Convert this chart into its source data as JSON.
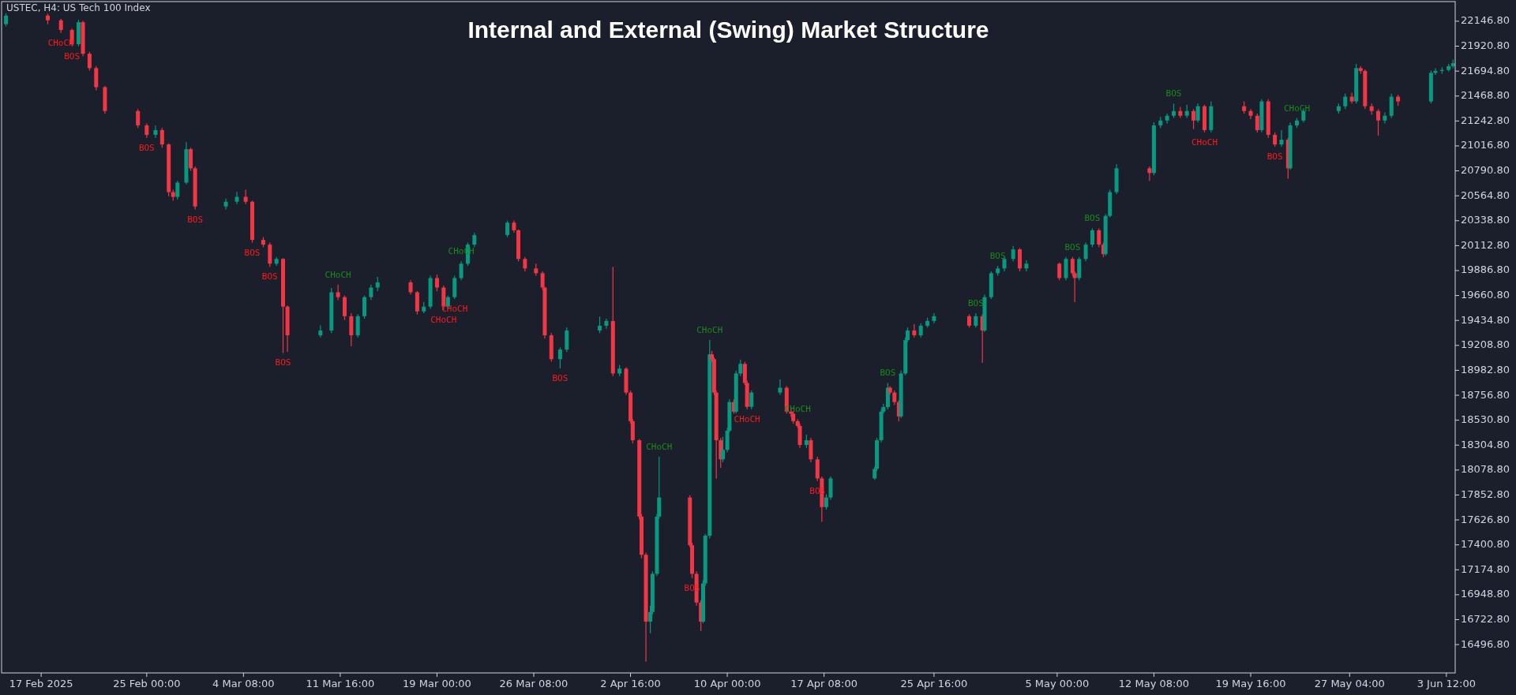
{
  "chart_data": {
    "type": "candlestick",
    "title": "Internal and External (Swing) Market Structure",
    "xlim": [
      "2025-02-14T00:00",
      "2025-06-04T04:00"
    ],
    "xticks": [
      {
        "value": "2025-02-17T00:00",
        "label": "17 Feb 2025"
      },
      {
        "value": "2025-02-25T00:00",
        "label": "25 Feb 00:00"
      },
      {
        "value": "2025-03-04T08:00",
        "label": "4 Mar 08:00"
      },
      {
        "value": "2025-03-11T16:00",
        "label": "11 Mar 16:00"
      },
      {
        "value": "2025-03-19T00:00",
        "label": "19 Mar 00:00"
      },
      {
        "value": "2025-03-26T08:00",
        "label": "26 Mar 08:00"
      },
      {
        "value": "2025-04-02T16:00",
        "label": "2 Apr 16:00"
      },
      {
        "value": "2025-04-10T00:00",
        "label": "10 Apr 00:00"
      },
      {
        "value": "2025-04-17T08:00",
        "label": "17 Apr 08:00"
      },
      {
        "value": "2025-04-25T16:00",
        "label": "25 Apr 16:00"
      },
      {
        "value": "2025-05-05T00:00",
        "label": "5 May 00:00"
      },
      {
        "value": "2025-05-12T08:00",
        "label": "12 May 08:00"
      },
      {
        "value": "2025-05-19T16:00",
        "label": "19 May 16:00"
      },
      {
        "value": "2025-05-27T04:00",
        "label": "27 May 04:00"
      },
      {
        "value": "2025-06-03T12:00",
        "label": "3 Jun 12:00"
      }
    ],
    "ylim": [
      16240,
      22325
    ],
    "yticks": [
      {
        "value": 16496.8,
        "label": "16496.80"
      },
      {
        "value": 16722.8,
        "label": "16722.80"
      },
      {
        "value": 16948.8,
        "label": "16948.80"
      },
      {
        "value": 17174.8,
        "label": "17174.80"
      },
      {
        "value": 17400.8,
        "label": "17400.80"
      },
      {
        "value": 17626.8,
        "label": "17626.80"
      },
      {
        "value": 17852.8,
        "label": "17852.80"
      },
      {
        "value": 18078.8,
        "label": "18078.80"
      },
      {
        "value": 18304.8,
        "label": "18304.80"
      },
      {
        "value": 18530.8,
        "label": "18530.80"
      },
      {
        "value": 18756.8,
        "label": "18756.80"
      },
      {
        "value": 18982.8,
        "label": "18982.80"
      },
      {
        "value": 19208.8,
        "label": "19208.80"
      },
      {
        "value": 19434.8,
        "label": "19434.80"
      },
      {
        "value": 19660.8,
        "label": "19660.80"
      },
      {
        "value": 19886.8,
        "label": "19886.80"
      },
      {
        "value": 20112.8,
        "label": "20112.80"
      },
      {
        "value": 20338.8,
        "label": "20338.80"
      },
      {
        "value": 20564.8,
        "label": "20564.80"
      },
      {
        "value": 20790.8,
        "label": "20790.80"
      },
      {
        "value": 21016.8,
        "label": "21016.80"
      },
      {
        "value": 21242.8,
        "label": "21242.80"
      },
      {
        "value": 21468.8,
        "label": "21468.80"
      },
      {
        "value": 21694.8,
        "label": "21694.80"
      },
      {
        "value": 21920.8,
        "label": "21920.80"
      },
      {
        "value": 22146.8,
        "label": "22146.80"
      }
    ],
    "grid": false,
    "x": [
      "2025-02-14T08:00",
      "2025-02-17T12:00",
      "2025-02-18T12:00",
      "2025-02-19T08:00",
      "2025-02-19T20:00",
      "2025-02-20T04:00",
      "2025-02-20T16:00",
      "2025-02-21T04:00",
      "2025-02-21T20:00",
      "2025-02-24T08:00",
      "2025-02-25T00:00",
      "2025-02-25T16:00",
      "2025-02-26T04:00",
      "2025-02-26T16:00",
      "2025-02-27T00:00",
      "2025-02-27T08:00",
      "2025-02-28T00:00",
      "2025-02-28T08:00",
      "2025-02-28T16:00",
      "2025-03-03T00:00",
      "2025-03-03T20:00",
      "2025-03-04T12:00",
      "2025-03-05T00:00",
      "2025-03-05T20:00",
      "2025-03-06T08:00",
      "2025-03-06T20:00",
      "2025-03-07T08:00",
      "2025-03-07T16:00",
      "2025-03-10T04:00",
      "2025-03-11T00:00",
      "2025-03-11T12:00",
      "2025-03-12T00:00",
      "2025-03-12T12:00",
      "2025-03-13T00:00",
      "2025-03-13T12:00",
      "2025-03-14T00:00",
      "2025-03-14T12:00",
      "2025-03-17T00:00",
      "2025-03-17T12:00",
      "2025-03-18T00:00",
      "2025-03-18T12:00",
      "2025-03-19T00:00",
      "2025-03-19T12:00",
      "2025-03-19T20:00",
      "2025-03-20T08:00",
      "2025-03-20T20:00",
      "2025-03-21T08:00",
      "2025-03-21T20:00",
      "2025-03-24T08:00",
      "2025-03-24T20:00",
      "2025-03-25T04:00",
      "2025-03-25T16:00",
      "2025-03-26T12:00",
      "2025-03-27T00:00",
      "2025-03-27T04:00",
      "2025-03-27T16:00",
      "2025-03-28T08:00",
      "2025-03-28T20:00",
      "2025-03-31T08:00",
      "2025-03-31T20:00",
      "2025-04-01T08:00",
      "2025-04-01T20:00",
      "2025-04-02T08:00",
      "2025-04-02T16:00",
      "2025-04-02T20:00",
      "2025-04-03T08:00",
      "2025-04-03T12:00",
      "2025-04-03T20:00",
      "2025-04-04T04:00",
      "2025-04-04T08:00",
      "2025-04-04T16:00",
      "2025-04-04T20:00",
      "2025-04-07T04:00",
      "2025-04-07T08:00",
      "2025-04-07T16:00",
      "2025-04-08T00:00",
      "2025-04-08T04:00",
      "2025-04-08T08:00",
      "2025-04-08T16:00",
      "2025-04-08T20:00",
      "2025-04-09T00:00",
      "2025-04-09T04:00",
      "2025-04-09T12:00",
      "2025-04-09T16:00",
      "2025-04-10T00:00",
      "2025-04-10T04:00",
      "2025-04-10T12:00",
      "2025-04-10T16:00",
      "2025-04-11T00:00",
      "2025-04-11T08:00",
      "2025-04-11T12:00",
      "2025-04-11T20:00",
      "2025-04-14T00:00",
      "2025-04-14T12:00",
      "2025-04-14T20:00",
      "2025-04-15T00:00",
      "2025-04-15T08:00",
      "2025-04-15T12:00",
      "2025-04-16T00:00",
      "2025-04-16T08:00",
      "2025-04-16T20:00",
      "2025-04-17T04:00",
      "2025-04-17T12:00",
      "2025-04-17T20:00",
      "2025-04-21T04:00",
      "2025-04-21T08:00",
      "2025-04-21T16:00",
      "2025-04-21T20:00",
      "2025-04-22T04:00",
      "2025-04-22T08:00",
      "2025-04-22T16:00",
      "2025-04-23T00:00",
      "2025-04-23T04:00",
      "2025-04-23T12:00",
      "2025-04-23T16:00",
      "2025-04-24T04:00",
      "2025-04-24T16:00",
      "2025-04-25T04:00",
      "2025-04-25T16:00",
      "2025-04-28T08:00",
      "2025-04-28T20:00",
      "2025-04-29T08:00",
      "2025-04-29T12:00",
      "2025-04-30T00:00",
      "2025-04-30T12:00",
      "2025-05-01T00:00",
      "2025-05-01T16:00",
      "2025-05-02T04:00",
      "2025-05-02T16:00",
      "2025-05-05T04:00",
      "2025-05-05T16:00",
      "2025-05-06T04:00",
      "2025-05-06T08:00",
      "2025-05-06T16:00",
      "2025-05-07T04:00",
      "2025-05-07T16:00",
      "2025-05-08T04:00",
      "2025-05-08T12:00",
      "2025-05-08T16:00",
      "2025-05-09T00:00",
      "2025-05-09T12:00",
      "2025-05-12T00:00",
      "2025-05-12T08:00",
      "2025-05-12T20:00",
      "2025-05-13T08:00",
      "2025-05-13T20:00",
      "2025-05-14T08:00",
      "2025-05-14T20:00",
      "2025-05-15T08:00",
      "2025-05-15T16:00",
      "2025-05-16T04:00",
      "2025-05-16T16:00",
      "2025-05-19T04:00",
      "2025-05-19T16:00",
      "2025-05-20T04:00",
      "2025-05-20T12:00",
      "2025-05-21T00:00",
      "2025-05-21T12:00",
      "2025-05-22T00:00",
      "2025-05-22T12:00",
      "2025-05-22T16:00",
      "2025-05-23T04:00",
      "2025-05-23T16:00",
      "2025-05-26T08:00",
      "2025-05-26T20:00",
      "2025-05-27T08:00",
      "2025-05-27T16:00",
      "2025-05-28T00:00",
      "2025-05-28T08:00",
      "2025-05-28T20:00",
      "2025-05-29T08:00",
      "2025-05-29T20:00",
      "2025-05-30T08:00",
      "2025-05-30T20:00",
      "2025-06-02T08:00",
      "2025-06-02T16:00",
      "2025-06-03T04:00",
      "2025-06-03T16:00",
      "2025-06-04T00:00"
    ],
    "ohlc": [
      [
        22120,
        22220,
        22100,
        22198
      ],
      [
        22198,
        22215,
        22120,
        22155
      ],
      [
        22155,
        22170,
        22040,
        22068
      ],
      [
        22068,
        22080,
        21920,
        21939
      ],
      [
        21939,
        22160,
        21920,
        22138
      ],
      [
        22138,
        22150,
        21830,
        21852
      ],
      [
        21852,
        21870,
        21700,
        21722
      ],
      [
        21722,
        21740,
        21520,
        21549
      ],
      [
        21549,
        21560,
        21310,
        21333
      ],
      [
        21333,
        21350,
        21180,
        21203
      ],
      [
        21203,
        21220,
        21090,
        21117
      ],
      [
        21117,
        21200,
        21090,
        21160
      ],
      [
        21160,
        21180,
        21000,
        21030
      ],
      [
        21030,
        21040,
        20560,
        20598
      ],
      [
        20598,
        20620,
        20520,
        20555
      ],
      [
        20555,
        20700,
        20530,
        20684
      ],
      [
        20684,
        21050,
        20670,
        20987
      ],
      [
        20987,
        21000,
        20790,
        20814
      ],
      [
        20814,
        20830,
        20440,
        20468
      ],
      [
        20468,
        20540,
        20440,
        20511
      ],
      [
        20511,
        20600,
        20490,
        20555
      ],
      [
        20555,
        20620,
        20490,
        20511
      ],
      [
        20511,
        20520,
        20140,
        20165
      ],
      [
        20165,
        20190,
        20100,
        20122
      ],
      [
        20122,
        20140,
        19920,
        19949
      ],
      [
        19949,
        20010,
        19930,
        19992
      ],
      [
        19992,
        20000,
        19140,
        19560
      ],
      [
        19560,
        19570,
        19150,
        19300
      ],
      [
        19300,
        19390,
        19280,
        19344
      ],
      [
        19344,
        19730,
        19320,
        19690
      ],
      [
        19690,
        19760,
        19620,
        19646
      ],
      [
        19646,
        19660,
        19440,
        19473
      ],
      [
        19473,
        19500,
        19200,
        19300
      ],
      [
        19300,
        19490,
        19280,
        19473
      ],
      [
        19473,
        19660,
        19450,
        19646
      ],
      [
        19646,
        19760,
        19620,
        19733
      ],
      [
        19733,
        19830,
        19700,
        19780
      ],
      [
        19780,
        19800,
        19670,
        19690
      ],
      [
        19690,
        19700,
        19490,
        19517
      ],
      [
        19517,
        19600,
        19500,
        19560
      ],
      [
        19560,
        19840,
        19540,
        19819
      ],
      [
        19819,
        19850,
        19700,
        19733
      ],
      [
        19733,
        19750,
        19530,
        19560
      ],
      [
        19560,
        19660,
        19540,
        19646
      ],
      [
        19646,
        19840,
        19630,
        19819
      ],
      [
        19819,
        19970,
        19800,
        19949
      ],
      [
        19949,
        20140,
        19930,
        20122
      ],
      [
        20122,
        20230,
        20100,
        20209
      ],
      [
        20209,
        20340,
        20190,
        20321
      ],
      [
        20321,
        20340,
        20230,
        20252
      ],
      [
        20252,
        20260,
        19970,
        19992
      ],
      [
        19992,
        20010,
        19880,
        19906
      ],
      [
        19906,
        19950,
        19840,
        19863
      ],
      [
        19863,
        19880,
        19710,
        19733
      ],
      [
        19733,
        19740,
        19270,
        19300
      ],
      [
        19300,
        19320,
        19060,
        19084
      ],
      [
        19084,
        19190,
        19000,
        19171
      ],
      [
        19171,
        19370,
        19150,
        19344
      ],
      [
        19344,
        19470,
        19320,
        19387
      ],
      [
        19387,
        19450,
        19360,
        19430
      ],
      [
        19430,
        19920,
        18930,
        18954
      ],
      [
        18954,
        19030,
        18930,
        18998
      ],
      [
        18998,
        19010,
        18760,
        18781
      ],
      [
        18781,
        18800,
        18500,
        18522
      ],
      [
        18522,
        18540,
        18320,
        18349
      ],
      [
        18349,
        18360,
        17630,
        17657
      ],
      [
        17657,
        17680,
        17280,
        17311
      ],
      [
        17311,
        17330,
        16342,
        16705
      ],
      [
        16705,
        16850,
        16600,
        16792
      ],
      [
        16792,
        17160,
        16770,
        17138
      ],
      [
        17138,
        17680,
        17120,
        17657
      ],
      [
        17657,
        18200,
        17640,
        17830
      ],
      [
        17830,
        17850,
        17380,
        17397
      ],
      [
        17397,
        17420,
        17100,
        17138
      ],
      [
        17138,
        17160,
        16850,
        16878
      ],
      [
        16878,
        16900,
        16620,
        16705
      ],
      [
        16705,
        17080,
        16690,
        17051
      ],
      [
        17051,
        17500,
        17030,
        17484
      ],
      [
        17484,
        19257,
        17460,
        19127
      ],
      [
        19127,
        19160,
        19060,
        19084
      ],
      [
        19084,
        19100,
        18760,
        18781
      ],
      [
        18781,
        18800,
        18000,
        18349
      ],
      [
        18349,
        18370,
        18100,
        18176
      ],
      [
        18176,
        18380,
        18150,
        18262
      ],
      [
        18262,
        18460,
        18240,
        18435
      ],
      [
        18435,
        18720,
        18420,
        18695
      ],
      [
        18695,
        18720,
        18590,
        18608
      ],
      [
        18608,
        18980,
        18590,
        18954
      ],
      [
        18954,
        19080,
        18930,
        19041
      ],
      [
        19041,
        19060,
        18850,
        18868
      ],
      [
        18868,
        18890,
        18630,
        18652
      ],
      [
        18652,
        18800,
        18630,
        18781
      ],
      [
        18781,
        18900,
        18760,
        18825
      ],
      [
        18825,
        18840,
        18590,
        18608
      ],
      [
        18608,
        18640,
        18560,
        18590
      ],
      [
        18590,
        18610,
        18500,
        18522
      ],
      [
        18522,
        18540,
        18460,
        18479
      ],
      [
        18479,
        18500,
        18280,
        18306
      ],
      [
        18306,
        18400,
        18280,
        18349
      ],
      [
        18349,
        18370,
        18150,
        18176
      ],
      [
        18176,
        18200,
        17980,
        18003
      ],
      [
        18003,
        18020,
        17610,
        17743
      ],
      [
        17743,
        17860,
        17720,
        17830
      ],
      [
        17830,
        18020,
        17810,
        18003
      ],
      [
        18003,
        18110,
        17990,
        18089
      ],
      [
        18089,
        18370,
        18070,
        18349
      ],
      [
        18349,
        18630,
        18330,
        18608
      ],
      [
        18608,
        18680,
        18590,
        18650
      ],
      [
        18650,
        18868,
        18630,
        18825
      ],
      [
        18825,
        18840,
        18760,
        18781
      ],
      [
        18781,
        18800,
        18670,
        18695
      ],
      [
        18695,
        18710,
        18520,
        18565
      ],
      [
        18565,
        18980,
        18550,
        18954
      ],
      [
        18954,
        19280,
        18940,
        19257
      ],
      [
        19257,
        19370,
        19240,
        19344
      ],
      [
        19344,
        19400,
        19280,
        19300
      ],
      [
        19300,
        19410,
        19280,
        19387
      ],
      [
        19387,
        19460,
        19370,
        19430
      ],
      [
        19430,
        19500,
        19410,
        19473
      ],
      [
        19473,
        19490,
        19370,
        19387
      ],
      [
        19387,
        19500,
        19370,
        19473
      ],
      [
        19473,
        19490,
        19050,
        19344
      ],
      [
        19344,
        19670,
        19330,
        19646
      ],
      [
        19646,
        19880,
        19630,
        19863
      ],
      [
        19863,
        19930,
        19840,
        19906
      ],
      [
        19906,
        20010,
        19880,
        19992
      ],
      [
        19992,
        20110,
        19970,
        20079
      ],
      [
        20079,
        20090,
        19880,
        19906
      ],
      [
        19906,
        19980,
        19880,
        19949
      ],
      [
        19949,
        19960,
        19800,
        19819
      ],
      [
        19819,
        20010,
        19800,
        19992
      ],
      [
        19992,
        20010,
        19840,
        19863
      ],
      [
        19863,
        19880,
        19600,
        19819
      ],
      [
        19819,
        20010,
        19800,
        19992
      ],
      [
        19992,
        20140,
        19970,
        20122
      ],
      [
        20122,
        20270,
        20100,
        20252
      ],
      [
        20252,
        20270,
        20100,
        20122
      ],
      [
        20122,
        20140,
        20010,
        20036
      ],
      [
        20036,
        20400,
        20020,
        20382
      ],
      [
        20382,
        20620,
        20370,
        20598
      ],
      [
        20598,
        20850,
        20580,
        20814
      ],
      [
        20814,
        20830,
        20700,
        20771
      ],
      [
        20771,
        21230,
        20750,
        21203
      ],
      [
        21203,
        21280,
        21180,
        21247
      ],
      [
        21247,
        21310,
        21220,
        21290
      ],
      [
        21290,
        21400,
        21270,
        21333
      ],
      [
        21333,
        21370,
        21270,
        21290
      ],
      [
        21290,
        21390,
        21270,
        21333
      ],
      [
        21333,
        21350,
        21170,
        21247
      ],
      [
        21247,
        21400,
        21230,
        21376
      ],
      [
        21376,
        21390,
        21140,
        21160
      ],
      [
        21160,
        21420,
        21140,
        21376
      ],
      [
        21376,
        21420,
        21310,
        21333
      ],
      [
        21333,
        21350,
        21260,
        21290
      ],
      [
        21290,
        21310,
        21140,
        21160
      ],
      [
        21160,
        21440,
        21140,
        21420
      ],
      [
        21420,
        21440,
        21090,
        21117
      ],
      [
        21117,
        21140,
        21010,
        21030
      ],
      [
        21030,
        21160,
        21010,
        21073
      ],
      [
        21073,
        21090,
        20720,
        20814
      ],
      [
        20814,
        21230,
        20800,
        21203
      ],
      [
        21203,
        21270,
        21180,
        21247
      ],
      [
        21247,
        21360,
        21230,
        21333
      ],
      [
        21333,
        21400,
        21310,
        21376
      ],
      [
        21376,
        21490,
        21350,
        21463
      ],
      [
        21463,
        21500,
        21400,
        21420
      ],
      [
        21420,
        21760,
        21400,
        21722
      ],
      [
        21722,
        21740,
        21670,
        21696
      ],
      [
        21696,
        21710,
        21350,
        21376
      ],
      [
        21376,
        21400,
        21300,
        21333
      ],
      [
        21333,
        21350,
        21110,
        21247
      ],
      [
        21247,
        21320,
        21220,
        21290
      ],
      [
        21290,
        21490,
        21270,
        21463
      ],
      [
        21463,
        21480,
        21380,
        21420
      ],
      [
        21420,
        21700,
        21400,
        21679
      ],
      [
        21679,
        21720,
        21660,
        21696
      ],
      [
        21696,
        21730,
        21670,
        21705
      ],
      [
        21705,
        21760,
        21690,
        21740
      ],
      [
        21740,
        21800,
        21720,
        21766
      ]
    ],
    "annotations": [
      "USTEC, H4:  US Tech 100 Index",
      {
        "text": "CHoCH",
        "x": "2025-02-18T12:00",
        "y": 22040
      },
      {
        "text": "BOS",
        "x": "2025-02-19T08:00",
        "y": 21920
      },
      {
        "text": "BOS",
        "x": "2025-02-25T00:00",
        "y": 21090
      },
      {
        "text": "BOS",
        "x": "2025-02-28T16:00",
        "y": 20440
      },
      {
        "text": "BOS",
        "x": "2025-03-05T00:00",
        "y": 20140
      },
      {
        "text": "BOS",
        "x": "2025-03-06T08:00",
        "y": 19920
      },
      {
        "text": "CHoCH",
        "x": "2025-03-11T12:00",
        "y": 19760
      },
      {
        "text": "BOS",
        "x": "2025-03-07T08:00",
        "y": 19140
      },
      {
        "text": "CHoCH",
        "x": "2025-03-20T20:00",
        "y": 19970
      },
      {
        "text": "CHoCH",
        "x": "2025-03-19T12:00",
        "y": 19530
      },
      {
        "text": "CHoCH",
        "x": "2025-03-20T08:00",
        "y": 19630
      },
      {
        "text": "BOS",
        "x": "2025-03-28T08:00",
        "y": 19000
      },
      {
        "text": "CHoCH",
        "x": "2025-04-04T20:00",
        "y": 18200
      },
      {
        "text": "BOS",
        "x": "2025-04-07T08:00",
        "y": 17100
      },
      {
        "text": "CHoCH",
        "x": "2025-04-08T16:00",
        "y": 19257
      },
      {
        "text": "CHoCH",
        "x": "2025-04-11T12:00",
        "y": 18630
      },
      {
        "text": "CHoCH",
        "x": "2025-04-15T08:00",
        "y": 18540
      },
      {
        "text": "BOS",
        "x": "2025-04-16T20:00",
        "y": 17980
      },
      {
        "text": "BOS",
        "x": "2025-04-22T04:00",
        "y": 18868
      },
      {
        "text": "BOS",
        "x": "2025-04-28T20:00",
        "y": 19500
      },
      {
        "text": "BOS",
        "x": "2025-04-30T12:00",
        "y": 19930
      },
      {
        "text": "BOS",
        "x": "2025-05-06T04:00",
        "y": 20010
      },
      {
        "text": "BOS",
        "x": "2025-05-07T16:00",
        "y": 20270
      },
      {
        "text": "BOS",
        "x": "2025-05-13T20:00",
        "y": 21400
      },
      {
        "text": "CHoCH",
        "x": "2025-05-16T04:00",
        "y": 21140
      },
      {
        "text": "BOS",
        "x": "2025-05-21T12:00",
        "y": 21010
      },
      {
        "text": "CHoCH",
        "x": "2025-05-23T04:00",
        "y": 21270
      }
    ]
  }
}
